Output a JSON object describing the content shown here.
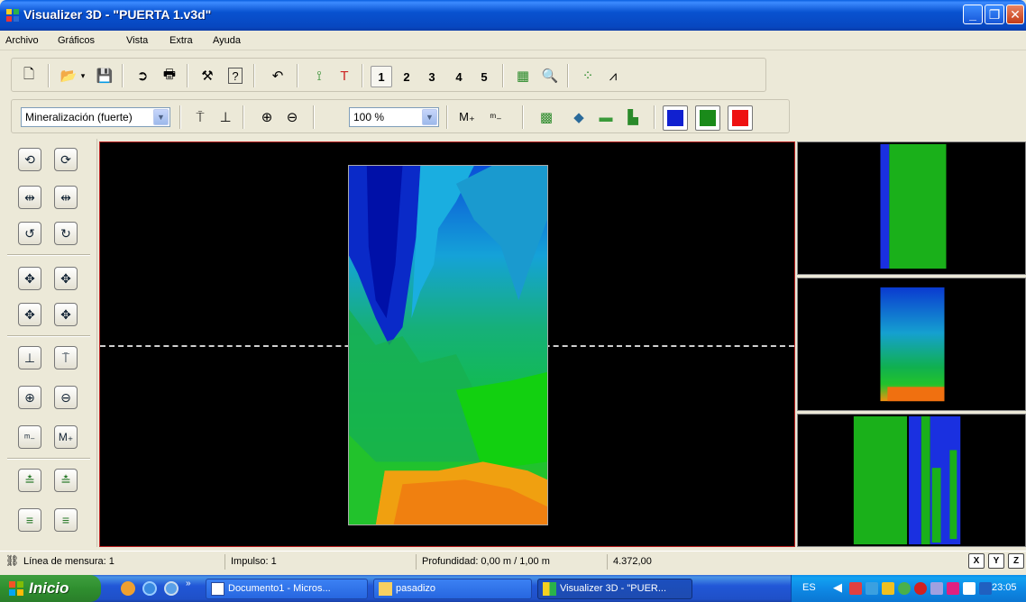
{
  "window": {
    "title": "Visualizer 3D - \"PUERTA 1.v3d\"",
    "buttons": [
      "minimize",
      "maximize",
      "close"
    ]
  },
  "menu": [
    "Archivo",
    "Gráficos",
    "Vista",
    "Extra",
    "Ayuda"
  ],
  "toolbar1": {
    "icons": [
      "new-file-icon",
      "open-folder-icon",
      "save-icon",
      "export-icon",
      "print-icon",
      "tools-icon",
      "help-icon",
      "undo-icon",
      "graph-tools-icon",
      "probe-icon"
    ],
    "numbers": [
      "1",
      "2",
      "3",
      "4",
      "5"
    ],
    "active_number": "1"
  },
  "toolbar2": {
    "mode_select": "Mineralización (fuerte)",
    "zoom_select": "100 %",
    "colors": [
      "#1020d0",
      "#1a8a1a",
      "#ee1111"
    ]
  },
  "status": {
    "linea": "Línea de mensura: 1",
    "impulso": "Impulso: 1",
    "profundidad": "Profundidad: 0,00 m / 1,00 m",
    "valor": "4.372,00",
    "axes": [
      "X",
      "Y",
      "Z"
    ]
  },
  "taskbar": {
    "start": "Inicio",
    "tasks": [
      "Documento1 - Micros...",
      "pasadizo",
      "Visualizer 3D - \"PUER..."
    ],
    "language": "ES",
    "time": "23:05"
  }
}
